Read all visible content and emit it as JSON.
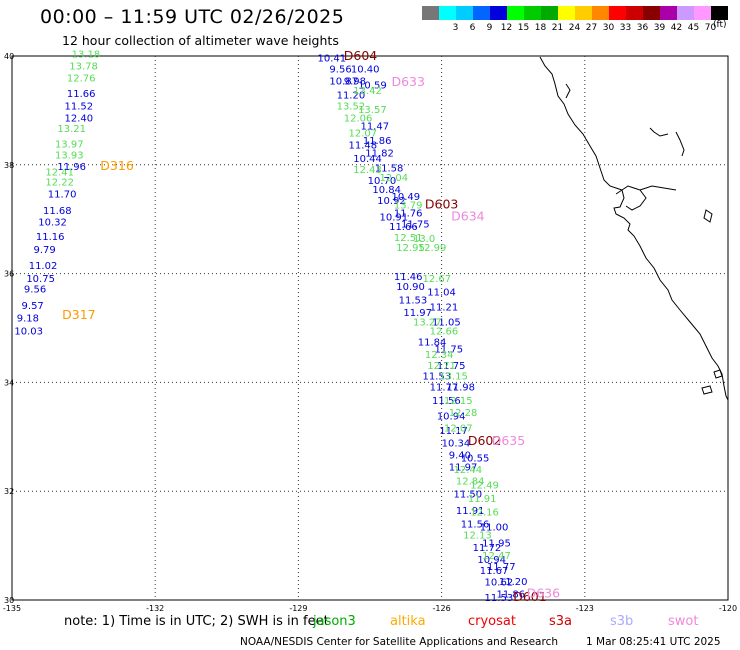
{
  "title": "00:00 – 11:59 UTC 02/26/2025",
  "subtitle": "12 hour collection of altimeter wave heights",
  "unit": "(ft)",
  "colors": {
    "blue": "#0000dd",
    "green": "#55dd55",
    "orange": "#ff9900",
    "darkred": "#880000",
    "pink": "#ee88dd",
    "jason": "#00aa00",
    "altika": "#ffaa00",
    "cryosat": "#ee0000",
    "s3a": "#cc0000",
    "s3b": "#aaaaff",
    "swot": "#ee88dd"
  },
  "legend": {
    "swatches": [
      {
        "label": "",
        "color": "#777777"
      },
      {
        "label": "3",
        "color": "#00ffff"
      },
      {
        "label": "6",
        "color": "#00ccff"
      },
      {
        "label": "9",
        "color": "#0066ff"
      },
      {
        "label": "12",
        "color": "#0000dd"
      },
      {
        "label": "15",
        "color": "#00ff00"
      },
      {
        "label": "18",
        "color": "#00cc00"
      },
      {
        "label": "21",
        "color": "#00aa00"
      },
      {
        "label": "24",
        "color": "#ffff00"
      },
      {
        "label": "27",
        "color": "#ffcc00"
      },
      {
        "label": "30",
        "color": "#ff8800"
      },
      {
        "label": "33",
        "color": "#ff0000"
      },
      {
        "label": "36",
        "color": "#cc0000"
      },
      {
        "label": "39",
        "color": "#880000"
      },
      {
        "label": "42",
        "color": "#aa00aa"
      },
      {
        "label": "45",
        "color": "#cc99ff"
      },
      {
        "label": "70",
        "color": "#ff99ff"
      },
      {
        "label": "",
        "color": "#000000"
      }
    ]
  },
  "axes": {
    "lat_labels": [
      "40",
      "38",
      "36",
      "34",
      "32",
      "30"
    ],
    "lon_labels": [
      "-135",
      "-132",
      "-129",
      "-126",
      "-123",
      "-120"
    ]
  },
  "pass_labels": [
    {
      "text": "D604",
      "lon": -128.05,
      "lat": 39.93,
      "color": "darkred"
    },
    {
      "text": "D633",
      "lon": -127.05,
      "lat": 39.45,
      "color": "pink"
    },
    {
      "text": "D316",
      "lon": -133.15,
      "lat": 37.9,
      "color": "orange"
    },
    {
      "text": "D603",
      "lon": -126.35,
      "lat": 37.2,
      "color": "darkred"
    },
    {
      "text": "D634",
      "lon": -125.8,
      "lat": 36.98,
      "color": "pink"
    },
    {
      "text": "D317",
      "lon": -133.95,
      "lat": 35.17,
      "color": "orange"
    },
    {
      "text": "D602",
      "lon": -125.45,
      "lat": 32.85,
      "color": "darkred"
    },
    {
      "text": "D635",
      "lon": -124.95,
      "lat": 32.85,
      "color": "pink"
    },
    {
      "text": "D601",
      "lon": -124.5,
      "lat": 29.98,
      "color": "darkred"
    },
    {
      "text": "D636",
      "lon": -124.22,
      "lat": 30.05,
      "color": "pink"
    }
  ],
  "tracks": [
    {
      "color": "green",
      "points": [
        {
          "v": "13.18",
          "lon": -133.75,
          "lat": 39.97
        },
        {
          "v": "13.78",
          "lon": -133.8,
          "lat": 39.75
        },
        {
          "v": "12.76",
          "lon": -133.85,
          "lat": 39.53
        },
        {
          "v": "13.21",
          "lon": -134.05,
          "lat": 38.6
        },
        {
          "v": "13.97",
          "lon": -134.1,
          "lat": 38.32
        },
        {
          "v": "13.93",
          "lon": -134.1,
          "lat": 38.12
        },
        {
          "v": "12.41",
          "lon": -134.3,
          "lat": 37.8
        },
        {
          "v": "12.22",
          "lon": -134.3,
          "lat": 37.62
        }
      ]
    },
    {
      "color": "blue",
      "points": [
        {
          "v": "11.66",
          "lon": -133.85,
          "lat": 39.25
        },
        {
          "v": "11.52",
          "lon": -133.9,
          "lat": 39.02
        },
        {
          "v": "12.40",
          "lon": -133.9,
          "lat": 38.8
        },
        {
          "v": "11.96",
          "lon": -134.05,
          "lat": 37.9
        },
        {
          "v": "11.70",
          "lon": -134.25,
          "lat": 37.4
        },
        {
          "v": "11.68",
          "lon": -134.35,
          "lat": 37.1
        },
        {
          "v": "10.32",
          "lon": -134.45,
          "lat": 36.88
        },
        {
          "v": "11.16",
          "lon": -134.5,
          "lat": 36.62
        },
        {
          "v": "9.79",
          "lon": -134.55,
          "lat": 36.38
        },
        {
          "v": "11.02",
          "lon": -134.65,
          "lat": 36.08
        },
        {
          "v": "10.75",
          "lon": -134.7,
          "lat": 35.85
        },
        {
          "v": "9.56",
          "lon": -134.75,
          "lat": 35.65
        },
        {
          "v": "9.57",
          "lon": -134.8,
          "lat": 35.35
        },
        {
          "v": "9.18",
          "lon": -134.9,
          "lat": 35.12
        },
        {
          "v": "10.03",
          "lon": -134.95,
          "lat": 34.88
        }
      ]
    },
    {
      "color": "blue",
      "points": [
        {
          "v": "10.41",
          "lon": -128.6,
          "lat": 39.9
        },
        {
          "v": "9.56",
          "lon": -128.35,
          "lat": 39.7
        },
        {
          "v": "10.40",
          "lon": -127.9,
          "lat": 39.7
        },
        {
          "v": "10.87",
          "lon": -128.35,
          "lat": 39.48
        },
        {
          "v": "9.98",
          "lon": -128.05,
          "lat": 39.48
        },
        {
          "v": "10.59",
          "lon": -127.75,
          "lat": 39.4
        },
        {
          "v": "11.20",
          "lon": -128.2,
          "lat": 39.22
        },
        {
          "v": "11.47",
          "lon": -127.7,
          "lat": 38.65
        },
        {
          "v": "11.86",
          "lon": -127.65,
          "lat": 38.38
        },
        {
          "v": "11.48",
          "lon": -127.95,
          "lat": 38.3
        },
        {
          "v": "11.82",
          "lon": -127.6,
          "lat": 38.15
        },
        {
          "v": "10.44",
          "lon": -127.85,
          "lat": 38.05
        },
        {
          "v": "11.58",
          "lon": -127.4,
          "lat": 37.88
        },
        {
          "v": "10.70",
          "lon": -127.55,
          "lat": 37.65
        },
        {
          "v": "10.84",
          "lon": -127.45,
          "lat": 37.48
        },
        {
          "v": "10.49",
          "lon": -127.05,
          "lat": 37.35
        },
        {
          "v": "10.92",
          "lon": -127.35,
          "lat": 37.28
        },
        {
          "v": "10.91",
          "lon": -127.3,
          "lat": 36.98
        },
        {
          "v": "11.76",
          "lon": -127.0,
          "lat": 37.05
        },
        {
          "v": "11.75",
          "lon": -126.85,
          "lat": 36.85
        },
        {
          "v": "11.66",
          "lon": -127.1,
          "lat": 36.8
        },
        {
          "v": "11.46",
          "lon": -127.0,
          "lat": 35.88
        },
        {
          "v": "10.90",
          "lon": -126.95,
          "lat": 35.7
        },
        {
          "v": "11.04",
          "lon": -126.3,
          "lat": 35.6
        },
        {
          "v": "11.53",
          "lon": -126.9,
          "lat": 35.45
        },
        {
          "v": "11.21",
          "lon": -126.25,
          "lat": 35.32
        },
        {
          "v": "11.97",
          "lon": -126.8,
          "lat": 35.22
        },
        {
          "v": "11.05",
          "lon": -126.2,
          "lat": 35.05
        },
        {
          "v": "11.84",
          "lon": -126.5,
          "lat": 34.68
        },
        {
          "v": "11.75",
          "lon": -126.15,
          "lat": 34.55
        },
        {
          "v": "11.75",
          "lon": -126.1,
          "lat": 34.25
        },
        {
          "v": "11.53",
          "lon": -126.4,
          "lat": 34.05
        },
        {
          "v": "11.77",
          "lon": -126.25,
          "lat": 33.85
        },
        {
          "v": "11.98",
          "lon": -125.9,
          "lat": 33.85
        },
        {
          "v": "11.56",
          "lon": -126.2,
          "lat": 33.6
        },
        {
          "v": "10.94",
          "lon": -126.1,
          "lat": 33.32
        },
        {
          "v": "11.17",
          "lon": -126.05,
          "lat": 33.05
        },
        {
          "v": "10.34",
          "lon": -126.0,
          "lat": 32.82
        },
        {
          "v": "9.40",
          "lon": -125.85,
          "lat": 32.6
        },
        {
          "v": "10.55",
          "lon": -125.6,
          "lat": 32.55
        },
        {
          "v": "11.97",
          "lon": -125.85,
          "lat": 32.38
        },
        {
          "v": "11.50",
          "lon": -125.75,
          "lat": 31.88
        },
        {
          "v": "11.91",
          "lon": -125.7,
          "lat": 31.58
        },
        {
          "v": "11.56",
          "lon": -125.6,
          "lat": 31.33
        },
        {
          "v": "11.00",
          "lon": -125.2,
          "lat": 31.28
        },
        {
          "v": "11.95",
          "lon": -125.15,
          "lat": 30.98
        },
        {
          "v": "11.72",
          "lon": -125.35,
          "lat": 30.9
        },
        {
          "v": "10.94",
          "lon": -125.25,
          "lat": 30.68
        },
        {
          "v": "11.77",
          "lon": -125.05,
          "lat": 30.55
        },
        {
          "v": "11.67",
          "lon": -125.2,
          "lat": 30.48
        },
        {
          "v": "10.62",
          "lon": -125.1,
          "lat": 30.27
        },
        {
          "v": "11.20",
          "lon": -124.8,
          "lat": 30.28
        },
        {
          "v": "11.86",
          "lon": -124.85,
          "lat": 30.05
        },
        {
          "v": "11.53",
          "lon": -125.1,
          "lat": 29.98
        }
      ]
    },
    {
      "color": "green",
      "points": [
        {
          "v": "13.42",
          "lon": -127.85,
          "lat": 39.3
        },
        {
          "v": "13.52",
          "lon": -128.2,
          "lat": 39.02
        },
        {
          "v": "13.57",
          "lon": -127.75,
          "lat": 38.95
        },
        {
          "v": "12.06",
          "lon": -128.05,
          "lat": 38.8
        },
        {
          "v": "12.07",
          "lon": -127.95,
          "lat": 38.52
        },
        {
          "v": "12.43",
          "lon": -127.85,
          "lat": 37.85
        },
        {
          "v": "12.04",
          "lon": -127.3,
          "lat": 37.7
        },
        {
          "v": "13.79",
          "lon": -127.0,
          "lat": 37.2
        },
        {
          "v": "12.51",
          "lon": -127.0,
          "lat": 36.6
        },
        {
          "v": "13.0",
          "lon": -126.6,
          "lat": 36.58
        },
        {
          "v": "12.95",
          "lon": -126.95,
          "lat": 36.42
        },
        {
          "v": "12.99",
          "lon": -126.5,
          "lat": 36.42
        },
        {
          "v": "12.67",
          "lon": -126.4,
          "lat": 35.85
        },
        {
          "v": "13.27",
          "lon": -126.6,
          "lat": 35.05
        },
        {
          "v": "12.66",
          "lon": -126.25,
          "lat": 34.88
        },
        {
          "v": "12.34",
          "lon": -126.35,
          "lat": 34.45
        },
        {
          "v": "12.71",
          "lon": -126.3,
          "lat": 34.25
        },
        {
          "v": "13.15",
          "lon": -126.05,
          "lat": 34.05
        },
        {
          "v": "12.15",
          "lon": -125.95,
          "lat": 33.6
        },
        {
          "v": "12.28",
          "lon": -125.85,
          "lat": 33.38
        },
        {
          "v": "12.07",
          "lon": -125.95,
          "lat": 33.1
        },
        {
          "v": "12.44",
          "lon": -125.75,
          "lat": 32.33
        },
        {
          "v": "12.84",
          "lon": -125.7,
          "lat": 32.12
        },
        {
          "v": "12.49",
          "lon": -125.4,
          "lat": 32.05
        },
        {
          "v": "11.91",
          "lon": -125.45,
          "lat": 31.8
        },
        {
          "v": "12.16",
          "lon": -125.4,
          "lat": 31.55
        },
        {
          "v": "12.13",
          "lon": -125.55,
          "lat": 31.13
        },
        {
          "v": "12.47",
          "lon": -125.15,
          "lat": 30.75
        }
      ]
    }
  ],
  "footer": {
    "note_prefix": "note: 1) Time is in UTC; 2) SWH is in feet",
    "satellites": [
      {
        "name": "jason3",
        "color": "jason"
      },
      {
        "name": "altika",
        "color": "altika"
      },
      {
        "name": "cryosat",
        "color": "cryosat"
      },
      {
        "name": "s3a",
        "color": "s3a"
      },
      {
        "name": "s3b",
        "color": "s3b"
      },
      {
        "name": "swot",
        "color": "swot"
      }
    ],
    "credit": "NOAA/NESDIS Center for Satellite Applications and Research",
    "timestamp": "1 Mar 08:25:41 UTC 2025"
  }
}
